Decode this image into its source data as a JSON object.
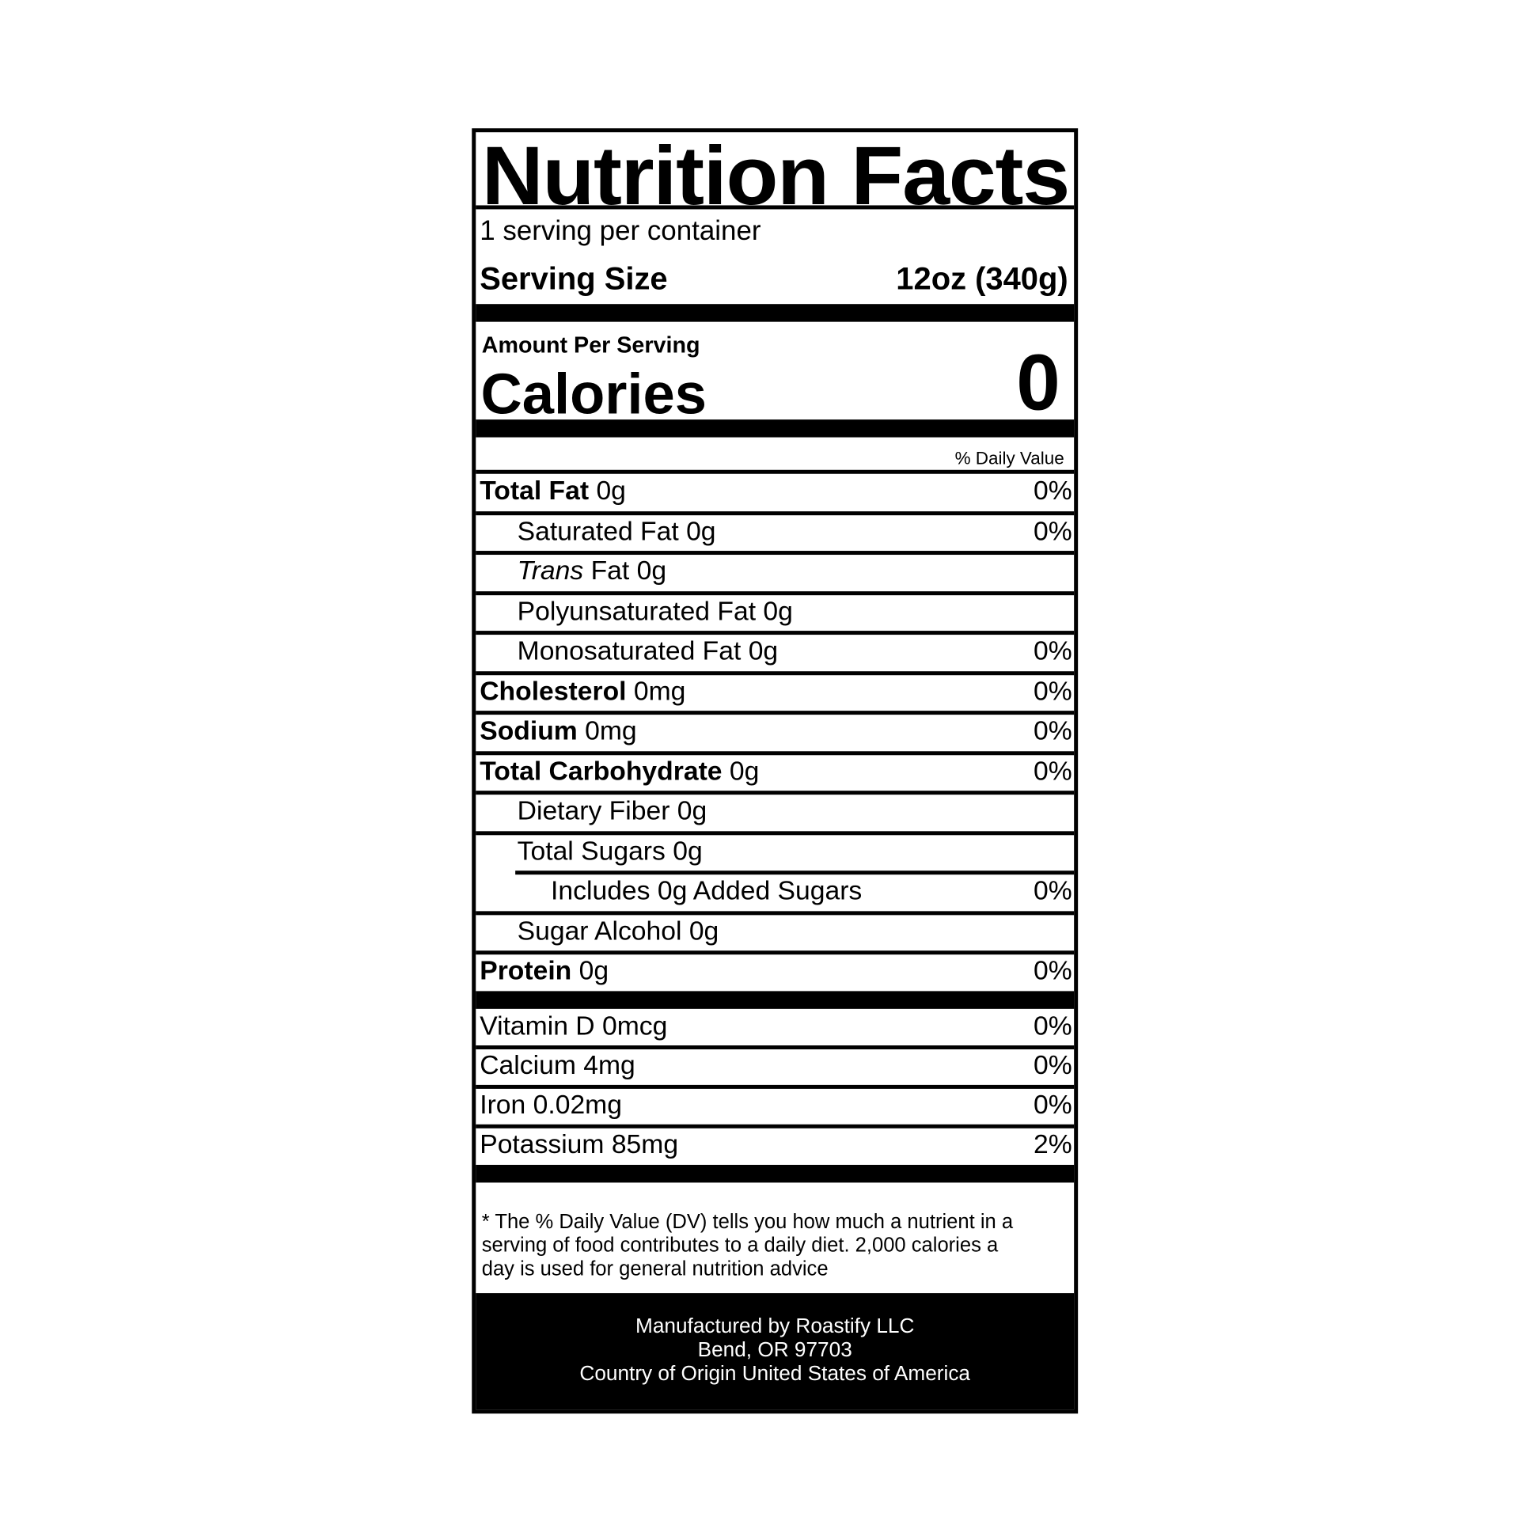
{
  "title": "Nutrition Facts",
  "servings": "1 serving per container",
  "serving_size": {
    "label": "Serving Size",
    "value": "12oz (340g)"
  },
  "amount_per_serving": "Amount Per Serving",
  "calories": {
    "label": "Calories",
    "value": "0"
  },
  "dv_header": "% Daily Value",
  "nutrients": [
    {
      "name": "Total Fat",
      "amount": "0g",
      "dv": "0%",
      "bold": true,
      "indent": 0
    },
    {
      "name": "Saturated Fat 0g",
      "amount": "",
      "dv": "0%",
      "bold": false,
      "indent": 1
    },
    {
      "name": "Trans",
      "amount": "Fat 0g",
      "dv": "",
      "italic": true,
      "indent": 1
    },
    {
      "name": "Polyunsaturated Fat 0g",
      "amount": "",
      "dv": "",
      "indent": 1
    },
    {
      "name": "Monosaturated Fat 0g",
      "amount": "",
      "dv": "0%",
      "indent": 1
    },
    {
      "name": "Cholesterol",
      "amount": "0mg",
      "dv": "0%",
      "bold": true,
      "indent": 0
    },
    {
      "name": "Sodium",
      "amount": "0mg",
      "dv": "0%",
      "bold": true,
      "indent": 0
    },
    {
      "name": "Total Carbohydrate",
      "amount": "0g",
      "dv": "0%",
      "bold": true,
      "indent": 0
    },
    {
      "name": "Dietary Fiber 0g",
      "amount": "",
      "dv": "",
      "indent": 1
    },
    {
      "name": "Total Sugars 0g",
      "amount": "",
      "dv": "",
      "indent": 1
    },
    {
      "name": "Includes 0g Added Sugars",
      "amount": "",
      "dv": "0%",
      "indent": 2
    },
    {
      "name": "Sugar Alcohol 0g",
      "amount": "",
      "dv": "",
      "indent": 1
    },
    {
      "name": "Protein",
      "amount": "0g",
      "dv": "0%",
      "bold": true,
      "indent": 0
    }
  ],
  "vitamins": [
    {
      "name": "Vitamin D 0mcg",
      "dv": "0%"
    },
    {
      "name": "Calcium 4mg",
      "dv": "0%"
    },
    {
      "name": "Iron 0.02mg",
      "dv": "0%"
    },
    {
      "name": "Potassium 85mg",
      "dv": "2%"
    }
  ],
  "footnote": "* The % Daily Value (DV) tells you how much a nutrient in a serving of food contributes to a daily diet. 2,000 calories a day is used for general nutrition advice",
  "manufacturer": {
    "line1": "Manufactured by Roastify LLC",
    "line2": "Bend, OR 97703",
    "line3": "Country of Origin United States of America"
  }
}
